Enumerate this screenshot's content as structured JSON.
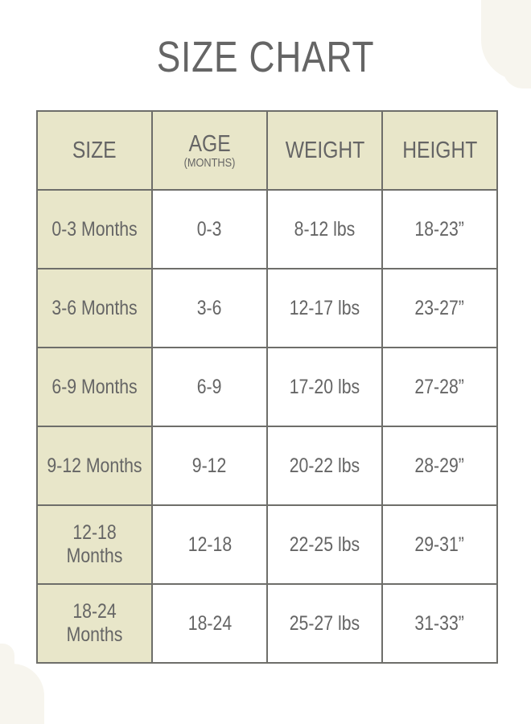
{
  "title": "SIZE CHART",
  "colors": {
    "header_bg": "#e8e6c9",
    "text": "#656565",
    "border": "#6e6e6a",
    "decoration": "#f7f5ee"
  },
  "headers": [
    {
      "label": "SIZE"
    },
    {
      "label": "AGE",
      "sub": "(MONTHS)"
    },
    {
      "label": "WEIGHT"
    },
    {
      "label": "HEIGHT"
    }
  ],
  "rows": [
    [
      "0-3 Months",
      "0-3",
      "8-12 lbs",
      "18-23”"
    ],
    [
      "3-6 Months",
      "3-6",
      "12-17 lbs",
      "23-27”"
    ],
    [
      "6-9 Months",
      "6-9",
      "17-20 lbs",
      "27-28”"
    ],
    [
      "9-12 Months",
      "9-12",
      "20-22 lbs",
      "28-29”"
    ],
    [
      "12-18 Months",
      "12-18",
      "22-25 lbs",
      "29-31”"
    ],
    [
      "18-24 Months",
      "18-24",
      "25-27 lbs",
      "31-33”"
    ]
  ]
}
